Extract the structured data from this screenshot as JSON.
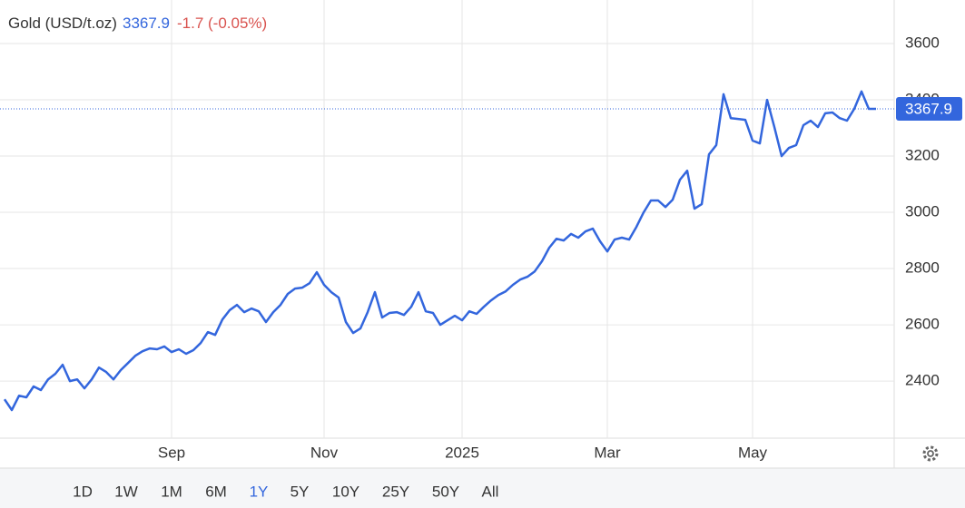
{
  "chart_data": {
    "type": "line",
    "title": "Gold (USD/t.oz)",
    "current": 3367.9,
    "change": "-1.7 (-0.05%)",
    "categories": [
      null,
      null,
      null,
      null,
      null,
      null,
      null,
      null,
      null,
      null,
      null,
      null,
      null,
      null,
      null,
      null,
      null,
      null,
      null,
      null,
      null,
      null,
      null,
      "Sep",
      null,
      null,
      null,
      null,
      null,
      null,
      null,
      null,
      null,
      null,
      null,
      null,
      null,
      null,
      null,
      null,
      null,
      null,
      null,
      null,
      "Nov",
      null,
      null,
      null,
      null,
      null,
      null,
      null,
      null,
      null,
      null,
      null,
      null,
      null,
      null,
      null,
      null,
      null,
      null,
      "2025",
      null,
      null,
      null,
      null,
      null,
      null,
      null,
      null,
      null,
      null,
      null,
      null,
      null,
      null,
      null,
      null,
      null,
      null,
      null,
      "Mar",
      null,
      null,
      null,
      null,
      null,
      null,
      null,
      null,
      null,
      null,
      null,
      null,
      null,
      null,
      null,
      null,
      null,
      null,
      null,
      "May",
      null,
      null,
      null,
      null,
      null,
      null,
      null,
      null,
      null,
      null,
      null,
      null,
      null,
      null,
      null,
      null,
      null
    ],
    "series": [
      {
        "name": "Gold",
        "color": "#3366dd",
        "values": [
          2335,
          2297,
          2348,
          2342,
          2381,
          2368,
          2406,
          2426,
          2458,
          2400,
          2406,
          2374,
          2406,
          2448,
          2432,
          2406,
          2439,
          2464,
          2490,
          2506,
          2516,
          2513,
          2523,
          2503,
          2513,
          2497,
          2510,
          2535,
          2574,
          2564,
          2619,
          2652,
          2671,
          2645,
          2658,
          2648,
          2610,
          2645,
          2671,
          2710,
          2729,
          2732,
          2748,
          2787,
          2742,
          2716,
          2697,
          2610,
          2571,
          2587,
          2645,
          2716,
          2626,
          2642,
          2645,
          2635,
          2664,
          2716,
          2648,
          2642,
          2600,
          2616,
          2632,
          2616,
          2648,
          2639,
          2664,
          2687,
          2706,
          2719,
          2742,
          2761,
          2771,
          2790,
          2826,
          2874,
          2906,
          2900,
          2923,
          2910,
          2932,
          2942,
          2897,
          2861,
          2903,
          2910,
          2903,
          2948,
          3000,
          3042,
          3042,
          3019,
          3045,
          3116,
          3148,
          3013,
          3029,
          3206,
          3239,
          3420,
          3335,
          3332,
          3329,
          3255,
          3245,
          3400,
          3303,
          3200,
          3229,
          3239,
          3310,
          3326,
          3303,
          3352,
          3355,
          3335,
          3326,
          3368,
          3430,
          3368,
          3367.9
        ]
      }
    ],
    "ylim": [
      2197,
      3755
    ],
    "yticks": [
      2400,
      2600,
      2800,
      3000,
      3200,
      3400,
      3600
    ],
    "grid": true,
    "ranges": [
      "1D",
      "1W",
      "1M",
      "6M",
      "1Y",
      "5Y",
      "10Y",
      "25Y",
      "50Y",
      "All"
    ],
    "selected_range": 4
  }
}
